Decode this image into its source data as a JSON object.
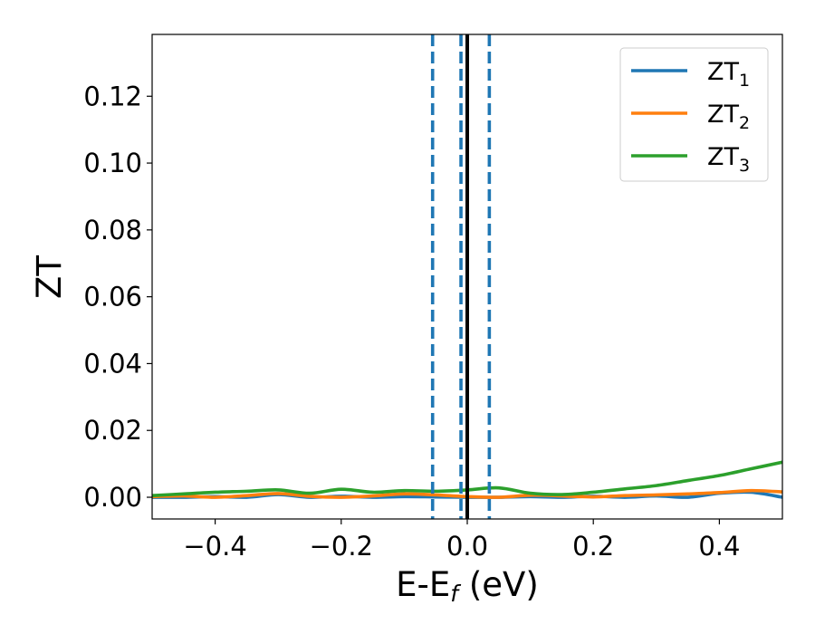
{
  "chart_data": {
    "type": "line",
    "title": "",
    "xlabel": "E-E",
    "xlabel_sub": "f",
    "xlabel_unit": " (eV)",
    "ylabel": "ZT",
    "xlim": [
      -0.5,
      0.5
    ],
    "ylim": [
      -0.0065,
      0.1385
    ],
    "xticks": [
      -0.4,
      -0.2,
      0.0,
      0.2,
      0.4
    ],
    "xtick_labels": [
      "−0.4",
      "−0.2",
      "0.0",
      "0.2",
      "0.4"
    ],
    "yticks": [
      0.0,
      0.02,
      0.04,
      0.06,
      0.08,
      0.1,
      0.12
    ],
    "ytick_labels": [
      "0.00",
      "0.02",
      "0.04",
      "0.06",
      "0.08",
      "0.10",
      "0.12"
    ],
    "grid": false,
    "legend_position": "top-right",
    "series": [
      {
        "name": "ZT",
        "name_sub": "1",
        "color": "#1f77b4",
        "x": [
          -0.5,
          -0.45,
          -0.4,
          -0.35,
          -0.3,
          -0.25,
          -0.2,
          -0.15,
          -0.1,
          -0.05,
          0.0,
          0.05,
          0.1,
          0.15,
          0.2,
          0.25,
          0.3,
          0.35,
          0.4,
          0.45,
          0.5
        ],
        "y": [
          0.0,
          0.0,
          0.0002,
          0.0,
          0.0008,
          0.0,
          0.0003,
          0.0,
          0.0002,
          0.0001,
          0.0,
          0.0,
          0.0002,
          0.0,
          0.0003,
          0.0,
          0.0004,
          0.0,
          0.0012,
          0.0015,
          0.0
        ]
      },
      {
        "name": "ZT",
        "name_sub": "2",
        "color": "#ff7f0e",
        "x": [
          -0.5,
          -0.45,
          -0.4,
          -0.35,
          -0.3,
          -0.25,
          -0.2,
          -0.15,
          -0.1,
          -0.05,
          0.0,
          0.05,
          0.1,
          0.15,
          0.2,
          0.25,
          0.3,
          0.35,
          0.4,
          0.45,
          0.5
        ],
        "y": [
          0.0002,
          0.0004,
          0.0,
          0.0005,
          0.0011,
          0.0003,
          0.0,
          0.0004,
          0.001,
          0.0007,
          0.0002,
          0.0,
          0.0006,
          0.0004,
          0.0001,
          0.0005,
          0.0007,
          0.001,
          0.0014,
          0.002,
          0.0016
        ]
      },
      {
        "name": "ZT",
        "name_sub": "3",
        "color": "#2ca02c",
        "x": [
          -0.5,
          -0.45,
          -0.4,
          -0.35,
          -0.3,
          -0.25,
          -0.2,
          -0.15,
          -0.1,
          -0.05,
          0.0,
          0.05,
          0.1,
          0.15,
          0.2,
          0.25,
          0.3,
          0.35,
          0.4,
          0.45,
          0.5
        ],
        "y": [
          0.0005,
          0.001,
          0.0015,
          0.0018,
          0.0022,
          0.0012,
          0.0024,
          0.0015,
          0.002,
          0.0018,
          0.0022,
          0.0028,
          0.0012,
          0.0008,
          0.0015,
          0.0025,
          0.0035,
          0.005,
          0.0065,
          0.0085,
          0.0105
        ]
      }
    ],
    "vlines": [
      {
        "x": -0.055,
        "style": "dashed",
        "color": "#1f77b4"
      },
      {
        "x": -0.01,
        "style": "dashed",
        "color": "#1f77b4"
      },
      {
        "x": 0.035,
        "style": "dashed",
        "color": "#1f77b4"
      },
      {
        "x": 0.0,
        "style": "solid",
        "color": "#000000"
      }
    ]
  }
}
